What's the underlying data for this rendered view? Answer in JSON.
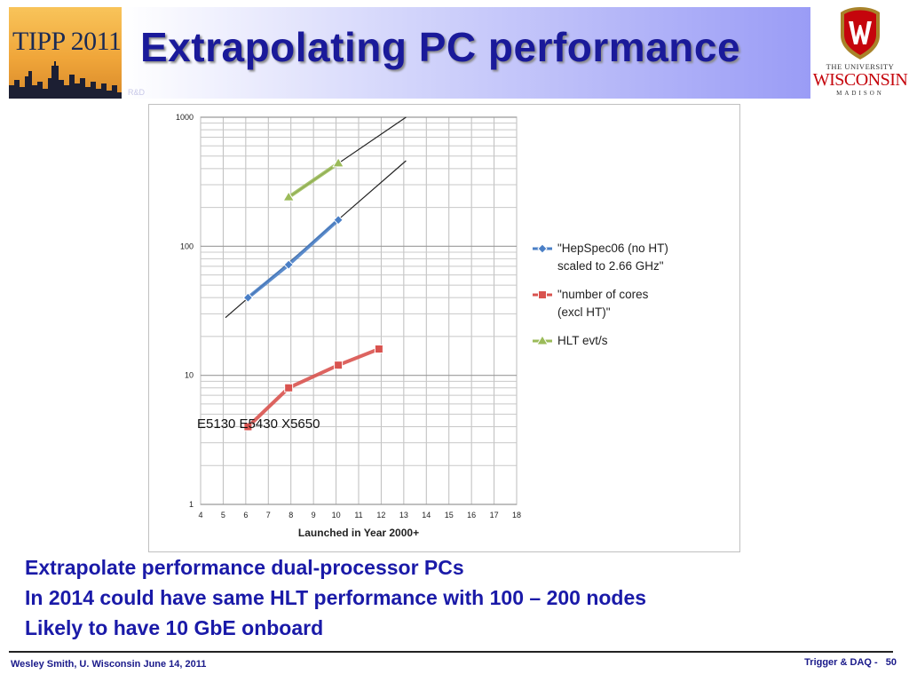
{
  "slide": {
    "title": "Extrapolating PC performance",
    "tipp_logo_text": "TIPP 2011",
    "rd_text": "R&D",
    "uw_logo": {
      "line1": "THE UNIVERSITY",
      "line2": "WISCONSIN",
      "line3": "MADISON"
    }
  },
  "chart_data": {
    "type": "line",
    "title": "",
    "xlabel": "Launched in Year 2000+",
    "ylabel": "",
    "y_scale": "log",
    "xlim": [
      4,
      18
    ],
    "ylim": [
      1,
      1000
    ],
    "x_ticks": [
      "4",
      "5",
      "6",
      "7",
      "8",
      "9",
      "10",
      "11",
      "12",
      "13",
      "14",
      "15",
      "16",
      "17",
      "18"
    ],
    "y_ticks": [
      "1",
      "10",
      "100",
      "1000"
    ],
    "grid": true,
    "legend_position": "right",
    "series": [
      {
        "name": "\"HepSpec06 (no HT) scaled to 2.66 GHz\"",
        "legend_lines": [
          "\"HepSpec06 (no HT)",
          "scaled to 2.66 GHz\""
        ],
        "marker": "diamond",
        "color": "#4a7fc6",
        "x": [
          6.1,
          7.9,
          10.1
        ],
        "y": [
          40,
          72,
          160
        ]
      },
      {
        "name": "\"number of cores (excl HT)\"",
        "legend_lines": [
          "\"number of cores",
          "(excl HT)\""
        ],
        "marker": "square",
        "color": "#d9534f",
        "x": [
          6.1,
          7.9,
          10.1,
          11.9
        ],
        "y": [
          4,
          8,
          12,
          16
        ]
      },
      {
        "name": "HLT evt/s",
        "legend_lines": [
          "HLT evt/s"
        ],
        "marker": "triangle",
        "color": "#9bbb59",
        "x": [
          7.9,
          10.1
        ],
        "y": [
          240,
          440
        ]
      }
    ],
    "trendlines": [
      {
        "x": [
          5.1,
          13.1
        ],
        "y": [
          28,
          460
        ],
        "color": "#222222"
      },
      {
        "x": [
          7.9,
          13.1
        ],
        "y": [
          240,
          1000
        ],
        "color": "#222222"
      }
    ],
    "annotation": "E5130 E5430 X5650"
  },
  "bullets": [
    "Extrapolate performance dual-processor PCs",
    "In 2014 could have same HLT performance with 100 – 200 nodes",
    "Likely to have 10 GbE onboard"
  ],
  "footer": {
    "left": "Wesley Smith, U. Wisconsin June 14, 2011",
    "right": "Trigger & DAQ -",
    "page_number": "50"
  },
  "colors": {
    "title_text": "#1a1a9a",
    "bullet_text": "#1a1aa8",
    "uw_red": "#c5050c"
  }
}
